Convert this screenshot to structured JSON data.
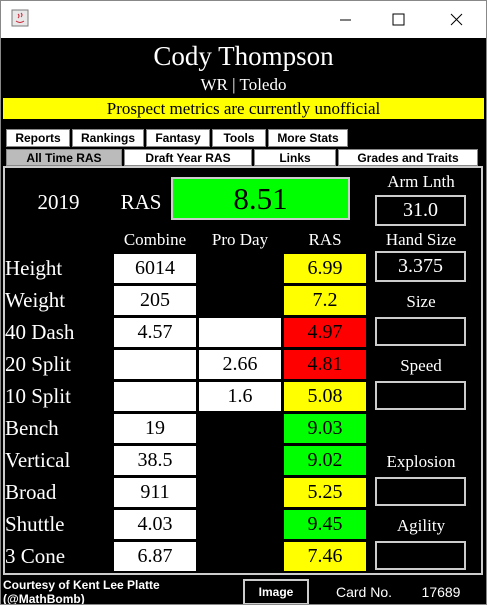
{
  "header": {
    "name": "Cody Thompson",
    "subtitle": "WR | Toledo",
    "banner": "Prospect metrics are currently unofficial"
  },
  "tabs": {
    "row1": [
      "Reports",
      "Rankings",
      "Fantasy",
      "Tools",
      "More Stats"
    ],
    "row2": [
      "All Time RAS",
      "Draft Year RAS",
      "Links",
      "Grades and Traits"
    ],
    "selected": "All Time RAS"
  },
  "summary": {
    "year": "2019",
    "ras_label": "RAS",
    "ras_value": "8.51",
    "ras_color": "#00ff00",
    "arm_label": "Arm Lnth",
    "arm_value": "31.0",
    "hand_label": "Hand Size",
    "hand_value": "3.375"
  },
  "columns": [
    "Combine",
    "Pro Day",
    "RAS"
  ],
  "rows": [
    {
      "label": "Height",
      "combine": "6014",
      "pro_day": null,
      "ras": "6.99",
      "combine_fill": "#ffffff",
      "pro_day_fill": "#000000",
      "ras_fill": "#ffff00"
    },
    {
      "label": "Weight",
      "combine": "205",
      "pro_day": null,
      "ras": "7.2",
      "combine_fill": "#ffffff",
      "pro_day_fill": "#000000",
      "ras_fill": "#ffff00"
    },
    {
      "label": "40 Dash",
      "combine": "4.57",
      "pro_day": null,
      "ras": "4.97",
      "combine_fill": "#ffffff",
      "pro_day_fill": "#ffffff",
      "ras_fill": "#ff0000"
    },
    {
      "label": "20 Split",
      "combine": null,
      "pro_day": "2.66",
      "ras": "4.81",
      "combine_fill": "#ffffff",
      "pro_day_fill": "#ffffff",
      "ras_fill": "#ff0000"
    },
    {
      "label": "10 Split",
      "combine": null,
      "pro_day": "1.6",
      "ras": "5.08",
      "combine_fill": "#ffffff",
      "pro_day_fill": "#ffffff",
      "ras_fill": "#ffff00"
    },
    {
      "label": "Bench",
      "combine": "19",
      "pro_day": null,
      "ras": "9.03",
      "combine_fill": "#ffffff",
      "pro_day_fill": "#000000",
      "ras_fill": "#00ff00"
    },
    {
      "label": "Vertical",
      "combine": "38.5",
      "pro_day": null,
      "ras": "9.02",
      "combine_fill": "#ffffff",
      "pro_day_fill": "#000000",
      "ras_fill": "#00ff00"
    },
    {
      "label": "Broad",
      "combine": "911",
      "pro_day": null,
      "ras": "5.25",
      "combine_fill": "#ffffff",
      "pro_day_fill": "#000000",
      "ras_fill": "#ffff00"
    },
    {
      "label": "Shuttle",
      "combine": "4.03",
      "pro_day": null,
      "ras": "9.45",
      "combine_fill": "#ffffff",
      "pro_day_fill": "#000000",
      "ras_fill": "#00ff00"
    },
    {
      "label": "3 Cone",
      "combine": "6.87",
      "pro_day": null,
      "ras": "7.46",
      "combine_fill": "#ffffff",
      "pro_day_fill": "#000000",
      "ras_fill": "#ffff00"
    }
  ],
  "grades": [
    "Size",
    "Speed",
    "Explosion",
    "Agility"
  ],
  "footer": {
    "credit": "Courtesy of Kent Lee Platte (@MathBomb)",
    "button": "Image",
    "card_label": "Card No.",
    "card_number": "17689"
  }
}
